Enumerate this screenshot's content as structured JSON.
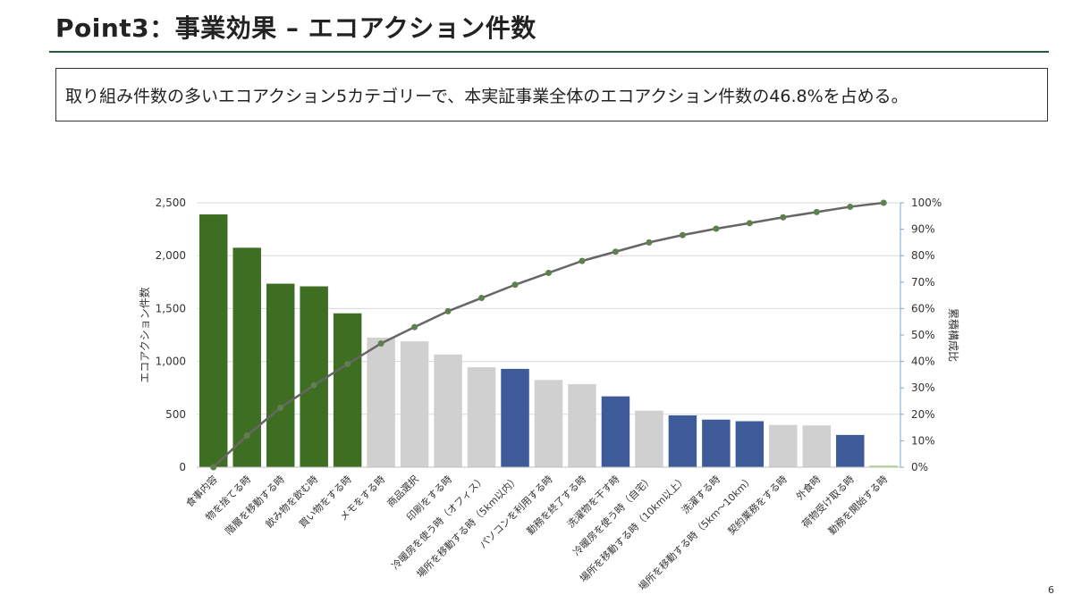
{
  "slide": {
    "title": "Point3：事業効果 – エコアクション件数",
    "summary": "取り組み件数の多いエコアクション5カテゴリーで、本実証事業全体のエコアクション件数の46.8%を占める。",
    "page_number": "6"
  },
  "colors": {
    "title_rule": "#1f5c3a",
    "bar_top5": "#3e6e22",
    "bar_gray": "#d0d0d0",
    "bar_blue": "#3d5a99",
    "bar_last": "#a9d18e",
    "cumulative_line": "#666666",
    "cumulative_marker": "#5f7f4e"
  },
  "chart_data": {
    "type": "bar",
    "title": "",
    "xlabel": "",
    "ylabel": "エコアクション件数",
    "y2label": "累積構成比",
    "ylim": [
      0,
      2500
    ],
    "y2lim": [
      0,
      100
    ],
    "yticks": [
      "0",
      "500",
      "1,000",
      "1,500",
      "2,000",
      "2,500"
    ],
    "y2ticks": [
      "0%",
      "10%",
      "20%",
      "30%",
      "40%",
      "50%",
      "60%",
      "70%",
      "80%",
      "90%",
      "100%"
    ],
    "grid": true,
    "categories": [
      "食事内容",
      "物を捨てる時",
      "階層を移動する時",
      "飲み物を飲む時",
      "買い物をする時",
      "メモをする時",
      "商品選択",
      "印刷をする時",
      "冷暖房を使う時（オフィス）",
      "場所を移動する時（5km以内）",
      "パソコンを利用する時",
      "勤務を終了する時",
      "洗濯物を干す時",
      "冷暖房を使う時（自宅）",
      "場所を移動する時（10km以上）",
      "洗濯する時",
      "場所を移動する時（5km～10km）",
      "契約業務をする時",
      "外食時",
      "荷物受け取る時",
      "勤務を開始する時"
    ],
    "series": [
      {
        "type": "bar",
        "values": [
          2390,
          2075,
          1735,
          1710,
          1455,
          1225,
          1190,
          1065,
          945,
          930,
          825,
          785,
          670,
          535,
          490,
          450,
          435,
          400,
          395,
          305,
          15
        ],
        "colors": [
          "top5",
          "top5",
          "top5",
          "top5",
          "top5",
          "gray",
          "gray",
          "gray",
          "gray",
          "blue",
          "gray",
          "gray",
          "blue",
          "gray",
          "blue",
          "blue",
          "blue",
          "gray",
          "gray",
          "blue",
          "last"
        ]
      },
      {
        "type": "line",
        "axis": "right",
        "values": [
          0,
          12,
          22.5,
          31,
          39,
          46.8,
          53,
          59,
          64,
          69,
          73.5,
          78,
          81.5,
          85,
          87.8,
          90.2,
          92.3,
          94.5,
          96.5,
          98.5,
          100
        ]
      }
    ]
  }
}
